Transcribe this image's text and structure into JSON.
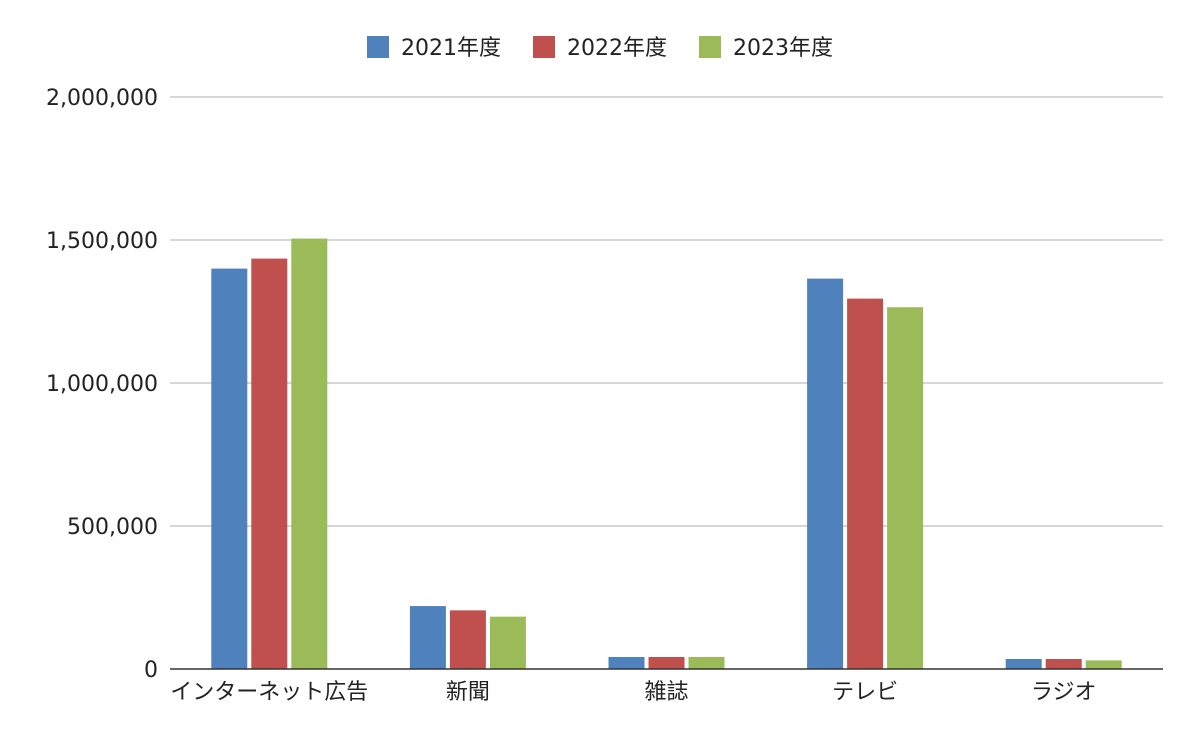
{
  "chart_data": {
    "type": "bar",
    "title": "",
    "xlabel": "",
    "ylabel": "",
    "categories": [
      "インターネット広告",
      "新聞",
      "雑誌",
      "テレビ",
      "ラジオ"
    ],
    "series": [
      {
        "name": "2021年度",
        "color": "#4f81bd",
        "values": [
          1400000,
          220000,
          42000,
          1365000,
          35000
        ]
      },
      {
        "name": "2022年度",
        "color": "#c0504d",
        "values": [
          1435000,
          205000,
          42000,
          1295000,
          35000
        ]
      },
      {
        "name": "2023年度",
        "color": "#9bbb59",
        "values": [
          1505000,
          183000,
          42000,
          1265000,
          30000
        ]
      }
    ],
    "ylim": [
      0,
      2000000
    ],
    "yticks": [
      0,
      500000,
      1000000,
      1500000,
      2000000
    ],
    "ytick_labels": [
      "0",
      "500,000",
      "1,000,000",
      "1,500,000",
      "2,000,000"
    ],
    "grid": true,
    "legend_position": "top-center"
  }
}
